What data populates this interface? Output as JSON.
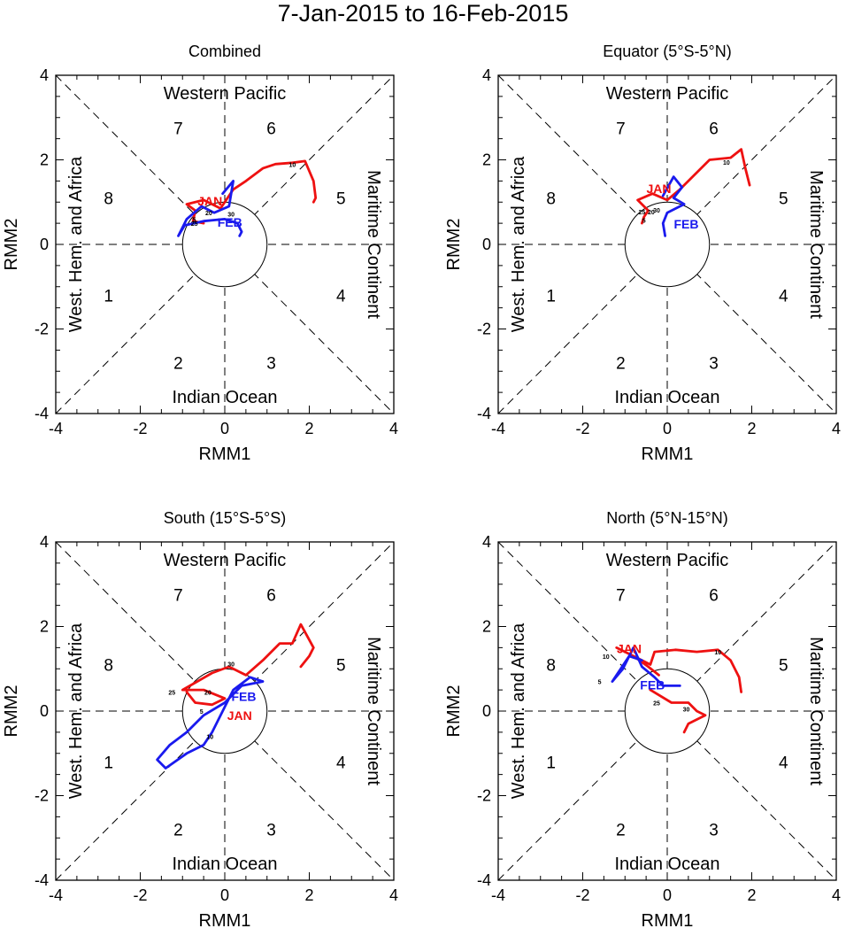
{
  "title": "7-Jan-2015 to 16-Feb-2015",
  "labels": {
    "xlabel": "RMM1",
    "ylabel": "RMM2",
    "top": "Western Pacific",
    "bottom": "Indian Ocean",
    "left": "West. Hem. and Africa",
    "right": "Maritime Continent"
  },
  "ticks": [
    "-4",
    "-2",
    "0",
    "2",
    "4"
  ],
  "phases": [
    "1",
    "2",
    "3",
    "4",
    "5",
    "6",
    "7",
    "8"
  ],
  "month_labels": {
    "jan": "JAN",
    "feb": "FEB"
  },
  "colors": {
    "jan": "#ee1111",
    "feb": "#1a1aee",
    "axis": "#000000"
  },
  "chart_data": [
    {
      "type": "line",
      "title": "Combined",
      "xlim": [
        -4,
        4
      ],
      "ylim": [
        -4,
        4
      ],
      "series": [
        {
          "name": "JAN",
          "color": "#ee1111",
          "x": [
            -0.5,
            -0.75,
            -0.7,
            -0.9,
            -0.5,
            -0.1,
            0.2,
            0.5,
            0.9,
            1.2,
            1.6,
            1.9,
            2.1,
            2.15,
            2.1
          ],
          "y": [
            0.5,
            0.55,
            0.8,
            0.95,
            1.05,
            0.85,
            1.3,
            1.5,
            1.8,
            1.9,
            1.93,
            1.97,
            1.5,
            1.1,
            1.0
          ]
        },
        {
          "name": "FEB",
          "color": "#1a1aee",
          "x": [
            -0.05,
            0.2,
            0.1,
            -0.25,
            -0.55,
            -0.9,
            -1.1,
            -0.95,
            -0.5,
            0.0,
            0.3,
            0.4,
            0.35
          ],
          "y": [
            1.2,
            1.5,
            0.9,
            0.75,
            0.9,
            0.6,
            0.2,
            0.45,
            0.55,
            0.6,
            0.5,
            0.3,
            0.2
          ]
        }
      ],
      "day_labels": [
        {
          "t": "5",
          "x": -0.72,
          "y": 0.6
        },
        {
          "t": "10",
          "x": 1.6,
          "y": 1.9
        },
        {
          "t": "20",
          "x": -0.38,
          "y": 0.75
        },
        {
          "t": "25",
          "x": -0.72,
          "y": 0.5
        },
        {
          "t": "30",
          "x": 0.15,
          "y": 0.72
        }
      ],
      "month_marks": [
        {
          "t": "JAN",
          "x": -0.35,
          "y": 1.03,
          "c": "jan"
        },
        {
          "t": "FEB",
          "x": 0.12,
          "y": 0.52,
          "c": "feb"
        }
      ]
    },
    {
      "type": "line",
      "title": "Equator (5°S-5°N)",
      "xlim": [
        -4,
        4
      ],
      "ylim": [
        -4,
        4
      ],
      "series": [
        {
          "name": "JAN",
          "color": "#ee1111",
          "x": [
            -0.6,
            -0.55,
            -0.45,
            -0.7,
            -0.35,
            0.0,
            0.3,
            0.6,
            1.0,
            1.5,
            1.75,
            1.85,
            1.95
          ],
          "y": [
            0.5,
            0.65,
            0.8,
            1.05,
            1.2,
            1.05,
            1.3,
            1.6,
            2.0,
            2.05,
            2.25,
            1.8,
            1.4
          ]
        },
        {
          "name": "FEB",
          "color": "#1a1aee",
          "x": [
            -0.1,
            0.15,
            0.35,
            0.15,
            0.4,
            0.0,
            -0.1,
            -0.05
          ],
          "y": [
            1.15,
            1.6,
            1.35,
            1.1,
            0.95,
            0.75,
            0.5,
            0.2
          ]
        }
      ],
      "day_labels": [
        {
          "t": "10",
          "x": 1.4,
          "y": 1.95
        },
        {
          "t": "20",
          "x": -0.38,
          "y": 0.78
        },
        {
          "t": "25",
          "x": -0.6,
          "y": 0.78
        },
        {
          "t": "30",
          "x": -0.25,
          "y": 0.82
        },
        {
          "t": "5",
          "x": -0.55,
          "y": 0.58
        }
      ],
      "month_marks": [
        {
          "t": "JAN",
          "x": -0.2,
          "y": 1.32,
          "c": "jan"
        },
        {
          "t": "FEB",
          "x": 0.45,
          "y": 0.48,
          "c": "feb"
        }
      ]
    },
    {
      "type": "line",
      "title": "South (15°S-5°S)",
      "xlim": [
        -4,
        4
      ],
      "ylim": [
        -4,
        4
      ],
      "series": [
        {
          "name": "JAN",
          "color": "#ee1111",
          "x": [
            -0.9,
            -0.7,
            -0.3,
            0.0,
            -0.5,
            -1.0,
            -0.3,
            0.1,
            0.5,
            0.9,
            1.3,
            1.6,
            1.8,
            2.1,
            2.0,
            1.8
          ],
          "y": [
            0.45,
            0.2,
            0.15,
            0.3,
            0.5,
            0.5,
            0.9,
            1.05,
            0.85,
            1.2,
            1.6,
            1.6,
            2.05,
            1.5,
            1.3,
            1.05
          ]
        },
        {
          "name": "FEB",
          "color": "#1a1aee",
          "x": [
            0.9,
            0.4,
            0.0,
            -0.5,
            -0.9,
            -1.3,
            -1.6,
            -1.4,
            -0.9,
            -0.5,
            -0.3,
            0.2,
            0.6,
            0.9
          ],
          "y": [
            0.7,
            0.6,
            0.2,
            -0.1,
            -0.5,
            -0.8,
            -1.15,
            -1.35,
            -1.0,
            -0.8,
            -0.5,
            0.5,
            0.8,
            0.7
          ]
        }
      ],
      "day_labels": [
        {
          "t": "25",
          "x": -1.25,
          "y": 0.45
        },
        {
          "t": "20",
          "x": -0.4,
          "y": 0.45
        },
        {
          "t": "30",
          "x": 0.15,
          "y": 1.12
        },
        {
          "t": "5",
          "x": -0.55,
          "y": 0.0
        },
        {
          "t": "10",
          "x": -0.35,
          "y": -0.6
        }
      ],
      "month_marks": [
        {
          "t": "FEB",
          "x": 0.45,
          "y": 0.35,
          "c": "feb"
        },
        {
          "t": "JAN",
          "x": 0.35,
          "y": -0.1,
          "c": "jan"
        }
      ]
    },
    {
      "type": "line",
      "title": "North (5°N-15°N)",
      "xlim": [
        -4,
        4
      ],
      "ylim": [
        -4,
        4
      ],
      "series": [
        {
          "name": "JAN",
          "color": "#ee1111",
          "x": [
            -0.2,
            -0.45,
            -0.8,
            -1.2,
            -0.7,
            -0.4,
            -0.3,
            0.2,
            0.7,
            1.2,
            1.5,
            1.7,
            1.75
          ],
          "y": [
            0.85,
            1.05,
            1.3,
            1.5,
            1.25,
            1.1,
            1.4,
            1.45,
            1.4,
            1.45,
            1.2,
            0.8,
            0.45
          ]
        },
        {
          "name": "FEB",
          "color": "#1a1aee",
          "x": [
            -0.6,
            -0.9,
            -1.3,
            -1.05,
            -0.8,
            -0.6,
            -0.3,
            -0.1,
            0.3
          ],
          "y": [
            1.2,
            1.3,
            0.7,
            1.0,
            1.5,
            1.05,
            0.8,
            0.6,
            0.6
          ]
        },
        {
          "name": "JAN-2",
          "color": "#ee1111",
          "x": [
            -0.4,
            0.1,
            0.5,
            0.7,
            0.9,
            0.5,
            0.4
          ],
          "y": [
            0.5,
            0.2,
            0.2,
            0.0,
            -0.1,
            -0.3,
            -0.5
          ]
        }
      ],
      "day_labels": [
        {
          "t": "10",
          "x": -1.45,
          "y": 1.3
        },
        {
          "t": "5",
          "x": -1.6,
          "y": 0.7
        },
        {
          "t": "10",
          "x": 1.2,
          "y": 1.4
        },
        {
          "t": "25",
          "x": -0.25,
          "y": 0.2
        },
        {
          "t": "30",
          "x": 0.45,
          "y": 0.05
        }
      ],
      "month_marks": [
        {
          "t": "JAN",
          "x": -0.9,
          "y": 1.48,
          "c": "jan"
        },
        {
          "t": "FEB",
          "x": -0.35,
          "y": 0.62,
          "c": "feb"
        }
      ]
    }
  ]
}
